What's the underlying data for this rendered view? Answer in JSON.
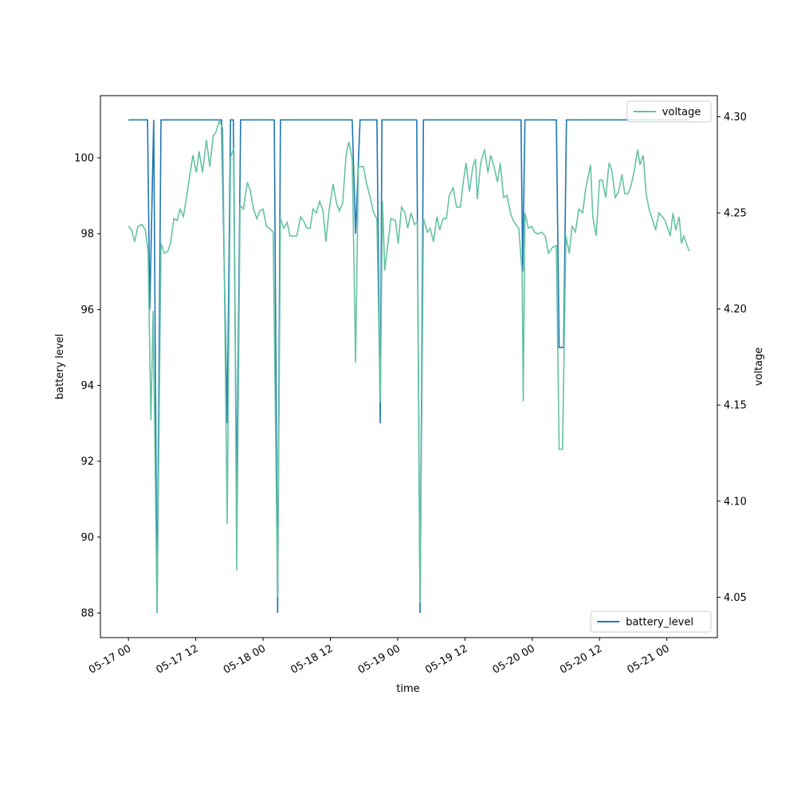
{
  "chart_data": {
    "type": "line",
    "xlabel": "time",
    "ylabel": "battery level",
    "y2label": "voltage",
    "xlim": [
      "05-16 19:00",
      "05-21 09:00"
    ],
    "xticks": [
      {
        "value": "05-17 00:00",
        "label": "05-17 00"
      },
      {
        "value": "05-17 12:00",
        "label": "05-17 12"
      },
      {
        "value": "05-18 00:00",
        "label": "05-18 00"
      },
      {
        "value": "05-18 12:00",
        "label": "05-18 12"
      },
      {
        "value": "05-19 00:00",
        "label": "05-19 00"
      },
      {
        "value": "05-19 12:00",
        "label": "05-19 12"
      },
      {
        "value": "05-20 00:00",
        "label": "05-20 00"
      },
      {
        "value": "05-20 12:00",
        "label": "05-20 12"
      },
      {
        "value": "05-21 00:00",
        "label": "05-21 00"
      }
    ],
    "ylim": [
      87.35,
      101.64
    ],
    "yticks": [
      88,
      90,
      92,
      94,
      96,
      98,
      100
    ],
    "y2lim": [
      4.029,
      4.311
    ],
    "y2ticks": [
      4.05,
      {
        "value": 4.1,
        "label": "4.10"
      },
      4.15,
      {
        "value": 4.2,
        "label": "4.20"
      },
      4.25,
      {
        "value": 4.3,
        "label": "4.30"
      }
    ],
    "grid": false,
    "series": [
      {
        "name": "battery_level",
        "color": "#1f77b4",
        "legend": "lower right",
        "x": [
          "05-17 00:00",
          "05-17 03:24",
          "05-17 03:48",
          "05-17 04:30",
          "05-17 05:06",
          "05-17 05:48",
          "05-17 16:36",
          "05-17 17:36",
          "05-17 18:12",
          "05-17 18:42",
          "05-17 19:18",
          "05-17 20:00",
          "05-18 02:00",
          "05-18 02:36",
          "05-18 03:06",
          "05-18 15:54",
          "05-18 16:30",
          "05-18 17:18",
          "05-18 20:18",
          "05-18 20:54",
          "05-18 21:12",
          "05-19 03:24",
          "05-19 04:00",
          "05-19 04:36",
          "05-19 22:00",
          "05-19 22:18",
          "05-19 22:42",
          "05-20 04:18",
          "05-20 04:48",
          "05-20 05:36",
          "05-20 06:06",
          "05-21 04:00"
        ],
        "values": [
          101,
          101,
          96,
          101,
          88,
          101,
          101,
          93,
          101,
          101,
          91,
          101,
          101,
          88,
          101,
          101,
          98,
          101,
          101,
          93,
          101,
          101,
          88,
          101,
          101,
          97,
          101,
          101,
          95,
          95,
          101,
          101
        ]
      },
      {
        "name": "voltage",
        "color": "#66c2a5",
        "legend": "upper right",
        "axis": "y2",
        "x": [
          "05-17 00:00",
          "05-17 00:36",
          "05-17 01:06",
          "05-17 01:42",
          "05-17 02:24",
          "05-17 03:00",
          "05-17 03:30",
          "05-17 04:00",
          "05-17 04:24",
          "05-17 05:06",
          "05-17 05:48",
          "05-17 06:24",
          "05-17 07:00",
          "05-17 07:30",
          "05-17 08:06",
          "05-17 08:42",
          "05-17 09:12",
          "05-17 09:48",
          "05-17 10:24",
          "05-17 10:54",
          "05-17 11:30",
          "05-17 12:06",
          "05-17 12:36",
          "05-17 13:12",
          "05-17 13:54",
          "05-17 14:30",
          "05-17 15:06",
          "05-17 15:36",
          "05-17 16:12",
          "05-17 16:48",
          "05-17 17:36",
          "05-17 18:12",
          "05-17 18:48",
          "05-17 19:18",
          "05-17 19:54",
          "05-17 20:30",
          "05-17 21:12",
          "05-17 21:42",
          "05-17 22:18",
          "05-17 22:54",
          "05-17 23:24",
          "05-18 00:00",
          "05-18 00:36",
          "05-18 01:06",
          "05-18 01:48",
          "05-18 02:36",
          "05-18 03:06",
          "05-18 03:42",
          "05-18 04:18",
          "05-18 04:48",
          "05-18 05:24",
          "05-18 06:00",
          "05-18 06:42",
          "05-18 07:12",
          "05-18 07:48",
          "05-18 08:24",
          "05-18 08:54",
          "05-18 09:30",
          "05-18 10:06",
          "05-18 10:42",
          "05-18 11:12",
          "05-18 11:48",
          "05-18 12:30",
          "05-18 13:06",
          "05-18 13:36",
          "05-18 14:12",
          "05-18 14:48",
          "05-18 15:18",
          "05-18 15:54",
          "05-18 16:30",
          "05-18 17:00",
          "05-18 17:54",
          "05-18 18:24",
          "05-18 19:12",
          "05-18 19:42",
          "05-18 20:18",
          "05-18 20:54",
          "05-18 21:18",
          "05-18 21:42",
          "05-18 22:18",
          "05-18 22:48",
          "05-18 23:36",
          "05-19 00:06",
          "05-19 00:42",
          "05-19 01:18",
          "05-19 01:48",
          "05-19 02:24",
          "05-19 03:00",
          "05-19 03:30",
          "05-19 04:00",
          "05-19 04:36",
          "05-19 05:18",
          "05-19 05:48",
          "05-19 06:24",
          "05-19 07:00",
          "05-19 07:30",
          "05-19 08:06",
          "05-19 08:42",
          "05-19 09:12",
          "05-19 09:54",
          "05-19 10:30",
          "05-19 11:12",
          "05-19 11:42",
          "05-19 12:12",
          "05-19 12:48",
          "05-19 13:24",
          "05-19 13:54",
          "05-19 14:12",
          "05-19 14:48",
          "05-19 15:30",
          "05-19 16:06",
          "05-19 16:36",
          "05-19 17:12",
          "05-19 17:48",
          "05-19 18:18",
          "05-19 18:54",
          "05-19 19:30",
          "05-19 20:12",
          "05-19 20:48",
          "05-19 21:36",
          "05-19 22:12",
          "05-19 22:24",
          "05-19 22:42",
          "05-19 23:18",
          "05-19 23:54",
          "05-20 00:24",
          "05-20 01:00",
          "05-20 01:42",
          "05-20 02:18",
          "05-20 02:54",
          "05-20 03:36",
          "05-20 04:18",
          "05-20 04:48",
          "05-20 05:24",
          "05-20 06:00",
          "05-20 06:36",
          "05-20 07:06",
          "05-20 07:42",
          "05-20 08:18",
          "05-20 09:00",
          "05-20 09:30",
          "05-20 10:24",
          "05-20 10:48",
          "05-20 11:24",
          "05-20 12:00",
          "05-20 12:30",
          "05-20 13:06",
          "05-20 13:42",
          "05-20 14:12",
          "05-20 14:48",
          "05-20 15:24",
          "05-20 16:00",
          "05-20 16:30",
          "05-20 17:06",
          "05-20 17:36",
          "05-20 18:12",
          "05-20 18:48",
          "05-20 19:12",
          "05-20 19:48",
          "05-20 20:18",
          "05-20 20:54",
          "05-20 21:30",
          "05-20 22:00",
          "05-20 22:36",
          "05-20 23:12",
          "05-20 23:42",
          "05-21 00:36",
          "05-21 01:06",
          "05-21 01:36",
          "05-21 02:12",
          "05-21 02:36",
          "05-21 03:00",
          "05-21 04:00"
        ],
        "values": [
          4.243,
          4.241,
          4.235,
          4.243,
          4.244,
          4.241,
          4.23,
          4.142,
          4.199,
          4.042,
          4.234,
          4.229,
          4.23,
          4.234,
          4.247,
          4.246,
          4.252,
          4.248,
          4.259,
          4.269,
          4.28,
          4.271,
          4.282,
          4.271,
          4.288,
          4.274,
          4.29,
          4.292,
          4.298,
          4.294,
          4.088,
          4.279,
          4.284,
          4.064,
          4.254,
          4.252,
          4.266,
          4.262,
          4.252,
          4.247,
          4.251,
          4.252,
          4.243,
          4.242,
          4.24,
          4.05,
          4.247,
          4.242,
          4.245,
          4.238,
          4.238,
          4.238,
          4.248,
          4.246,
          4.242,
          4.242,
          4.252,
          4.25,
          4.256,
          4.251,
          4.235,
          4.252,
          4.265,
          4.255,
          4.251,
          4.255,
          4.28,
          4.287,
          4.278,
          4.172,
          4.274,
          4.274,
          4.266,
          4.257,
          4.25,
          4.247,
          4.151,
          4.256,
          4.22,
          4.235,
          4.247,
          4.246,
          4.234,
          4.253,
          4.25,
          4.242,
          4.25,
          4.244,
          4.245,
          4.047,
          4.247,
          4.24,
          4.242,
          4.235,
          4.248,
          4.241,
          4.247,
          4.247,
          4.259,
          4.263,
          4.253,
          4.253,
          4.266,
          4.276,
          4.261,
          4.274,
          4.278,
          4.257,
          4.276,
          4.283,
          4.271,
          4.28,
          4.274,
          4.266,
          4.276,
          4.258,
          4.259,
          4.249,
          4.245,
          4.242,
          4.219,
          4.152,
          4.25,
          4.242,
          4.243,
          4.24,
          4.239,
          4.24,
          4.238,
          4.229,
          4.232,
          4.233,
          4.127,
          4.127,
          4.238,
          4.229,
          4.243,
          4.24,
          4.252,
          4.25,
          4.262,
          4.275,
          4.248,
          4.238,
          4.267,
          4.267,
          4.258,
          4.276,
          4.272,
          4.258,
          4.261,
          4.27,
          4.26,
          4.26,
          4.264,
          4.272,
          4.283,
          4.275,
          4.28,
          4.26,
          4.251,
          4.246,
          4.241,
          4.25,
          4.248,
          4.246,
          4.238,
          4.25,
          4.241,
          4.248,
          4.234,
          4.238,
          4.23
        ]
      }
    ]
  }
}
